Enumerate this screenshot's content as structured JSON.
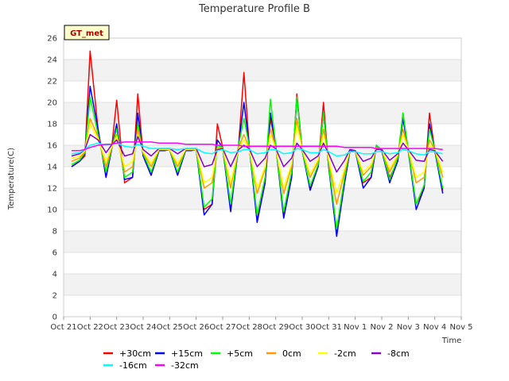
{
  "chart_data": {
    "type": "line",
    "title": "Temperature Profile B",
    "xlabel": "Time",
    "ylabel": "Temperature(C)",
    "ylim": [
      0,
      26
    ],
    "yticks": [
      0,
      2,
      4,
      6,
      8,
      10,
      12,
      14,
      16,
      18,
      20,
      22,
      24,
      26
    ],
    "xlim": [
      0,
      15
    ],
    "xtick_labels": [
      "Oct 21",
      "Oct 22",
      "Oct 23",
      "Oct 24",
      "Oct 25",
      "Oct 26",
      "Oct 27",
      "Oct 28",
      "Oct 29",
      "Oct 30",
      "Oct 31",
      "Nov 1",
      "Nov 2",
      "Nov 3",
      "Nov 4",
      "Nov 5"
    ],
    "x_unit": "days since Oct 21",
    "badge": "GT_met",
    "x": [
      0.3,
      0.6,
      0.8,
      1.0,
      1.3,
      1.6,
      1.8,
      2.0,
      2.3,
      2.6,
      2.8,
      3.0,
      3.3,
      3.6,
      3.8,
      4.0,
      4.3,
      4.6,
      4.8,
      5.0,
      5.3,
      5.6,
      5.8,
      6.0,
      6.3,
      6.6,
      6.8,
      7.0,
      7.3,
      7.6,
      7.8,
      8.0,
      8.3,
      8.6,
      8.8,
      9.0,
      9.3,
      9.6,
      9.8,
      10.0,
      10.3,
      10.6,
      10.8,
      11.0,
      11.3,
      11.6,
      11.8,
      12.0,
      12.3,
      12.6,
      12.8,
      13.0,
      13.3,
      13.6,
      13.8,
      14.0,
      14.3
    ],
    "series": [
      {
        "name": "+30cm",
        "color": "#ff0000",
        "values": [
          14.0,
          14.5,
          15.0,
          24.8,
          17.5,
          13.0,
          15.5,
          20.2,
          12.5,
          13.0,
          20.8,
          15.0,
          13.2,
          15.5,
          15.5,
          15.6,
          13.2,
          15.5,
          15.5,
          15.6,
          10.0,
          10.5,
          18.0,
          15.8,
          10.0,
          16.0,
          22.8,
          16.0,
          9.0,
          12.5,
          18.5,
          16.0,
          9.5,
          13.0,
          20.8,
          15.5,
          12.0,
          14.0,
          20.0,
          14.0,
          8.0,
          12.5,
          15.5,
          15.5,
          12.5,
          13.0,
          16.0,
          15.5,
          13.0,
          14.5,
          19.0,
          15.5,
          10.5,
          12.0,
          19.0,
          15.5,
          11.8
        ]
      },
      {
        "name": "+15cm",
        "color": "#0000ff",
        "values": [
          14.0,
          14.5,
          15.2,
          21.5,
          17.5,
          13.0,
          15.5,
          18.0,
          12.8,
          13.0,
          19.0,
          15.0,
          13.2,
          15.5,
          15.5,
          15.6,
          13.2,
          15.5,
          15.5,
          15.6,
          9.5,
          10.5,
          16.5,
          15.8,
          9.8,
          16.0,
          20.0,
          16.0,
          8.8,
          12.5,
          19.0,
          16.0,
          9.2,
          13.0,
          20.5,
          15.5,
          11.8,
          14.0,
          19.0,
          14.0,
          7.5,
          12.5,
          15.5,
          15.5,
          12.0,
          13.0,
          16.0,
          15.5,
          12.5,
          14.5,
          18.5,
          15.5,
          10.0,
          12.0,
          18.0,
          15.5,
          11.5
        ]
      },
      {
        "name": "+5cm",
        "color": "#00ff00",
        "values": [
          14.2,
          14.6,
          15.3,
          20.5,
          17.0,
          13.5,
          15.6,
          17.5,
          13.0,
          13.5,
          18.0,
          15.2,
          13.5,
          15.6,
          15.6,
          15.6,
          13.5,
          15.6,
          15.6,
          15.6,
          10.2,
          11.0,
          16.0,
          15.8,
          10.5,
          16.0,
          18.5,
          16.0,
          9.5,
          13.0,
          20.3,
          16.0,
          9.8,
          13.5,
          20.5,
          15.5,
          12.2,
          14.2,
          19.0,
          14.2,
          8.2,
          13.0,
          15.6,
          15.5,
          12.6,
          13.5,
          16.0,
          15.6,
          12.8,
          14.8,
          19.0,
          15.6,
          10.5,
          12.3,
          17.5,
          15.6,
          12.0
        ]
      },
      {
        "name": "0cm",
        "color": "#ff9900",
        "values": [
          14.5,
          14.8,
          15.4,
          18.5,
          16.8,
          14.0,
          15.7,
          17.0,
          13.5,
          14.0,
          17.5,
          15.3,
          14.0,
          15.6,
          15.6,
          15.6,
          14.0,
          15.6,
          15.6,
          15.6,
          12.0,
          12.5,
          15.8,
          15.8,
          12.0,
          15.8,
          17.0,
          15.8,
          11.5,
          13.8,
          17.5,
          15.8,
          11.5,
          14.0,
          18.5,
          15.6,
          13.0,
          14.5,
          17.5,
          14.5,
          10.5,
          13.5,
          15.6,
          15.5,
          13.2,
          14.0,
          15.8,
          15.6,
          13.5,
          15.0,
          17.5,
          15.6,
          12.5,
          13.0,
          16.5,
          15.6,
          13.0
        ]
      },
      {
        "name": "-2cm",
        "color": "#ffff00",
        "values": [
          14.8,
          15.0,
          15.5,
          18.0,
          16.6,
          14.5,
          15.8,
          16.8,
          14.0,
          14.5,
          17.0,
          15.4,
          14.3,
          15.6,
          15.6,
          15.6,
          14.3,
          15.6,
          15.6,
          15.6,
          12.5,
          13.0,
          15.7,
          15.7,
          12.5,
          15.7,
          16.5,
          15.7,
          12.0,
          14.0,
          17.0,
          15.7,
          12.0,
          14.3,
          17.8,
          15.6,
          13.3,
          14.7,
          17.0,
          14.7,
          11.5,
          13.8,
          15.6,
          15.5,
          13.5,
          14.2,
          15.7,
          15.6,
          13.8,
          15.1,
          17.0,
          15.6,
          13.0,
          13.5,
          16.0,
          15.6,
          13.5
        ]
      },
      {
        "name": "-8cm",
        "color": "#8800cc",
        "values": [
          15.0,
          15.2,
          15.6,
          17.0,
          16.5,
          15.3,
          16.0,
          16.5,
          15.0,
          15.2,
          16.8,
          15.6,
          15.0,
          15.7,
          15.7,
          15.7,
          15.2,
          15.7,
          15.7,
          15.7,
          14.0,
          14.2,
          15.6,
          15.7,
          14.0,
          15.6,
          16.0,
          15.7,
          14.0,
          14.8,
          16.0,
          15.7,
          14.0,
          14.8,
          16.2,
          15.6,
          14.5,
          15.0,
          16.2,
          15.2,
          13.5,
          14.6,
          15.6,
          15.5,
          14.5,
          14.8,
          15.6,
          15.6,
          14.6,
          15.2,
          16.2,
          15.6,
          14.6,
          14.5,
          15.6,
          15.5,
          14.5
        ]
      },
      {
        "name": "-16cm",
        "color": "#00ffff",
        "values": [
          15.2,
          15.3,
          15.6,
          16.0,
          16.2,
          16.0,
          16.1,
          16.2,
          15.9,
          15.8,
          16.1,
          15.9,
          15.7,
          15.7,
          15.7,
          15.7,
          15.6,
          15.7,
          15.7,
          15.7,
          15.3,
          15.2,
          15.5,
          15.6,
          15.3,
          15.4,
          15.6,
          15.6,
          15.2,
          15.3,
          15.6,
          15.6,
          15.2,
          15.3,
          15.7,
          15.6,
          15.3,
          15.3,
          15.6,
          15.4,
          15.0,
          15.1,
          15.4,
          15.4,
          15.2,
          15.2,
          15.4,
          15.4,
          15.2,
          15.3,
          15.6,
          15.5,
          15.2,
          15.1,
          15.4,
          15.4,
          15.2
        ]
      },
      {
        "name": "-32cm",
        "color": "#ff00ff",
        "values": [
          15.5,
          15.5,
          15.6,
          15.8,
          16.0,
          16.1,
          16.1,
          16.2,
          16.3,
          16.3,
          16.3,
          16.3,
          16.3,
          16.2,
          16.2,
          16.2,
          16.2,
          16.1,
          16.1,
          16.1,
          16.1,
          16.1,
          16.0,
          16.0,
          16.0,
          16.0,
          15.9,
          15.9,
          15.9,
          15.9,
          15.9,
          15.9,
          15.9,
          15.9,
          15.9,
          15.9,
          15.9,
          15.9,
          15.9,
          15.9,
          15.9,
          15.8,
          15.8,
          15.8,
          15.8,
          15.8,
          15.7,
          15.7,
          15.7,
          15.7,
          15.7,
          15.7,
          15.7,
          15.7,
          15.7,
          15.7,
          15.6
        ]
      }
    ]
  }
}
